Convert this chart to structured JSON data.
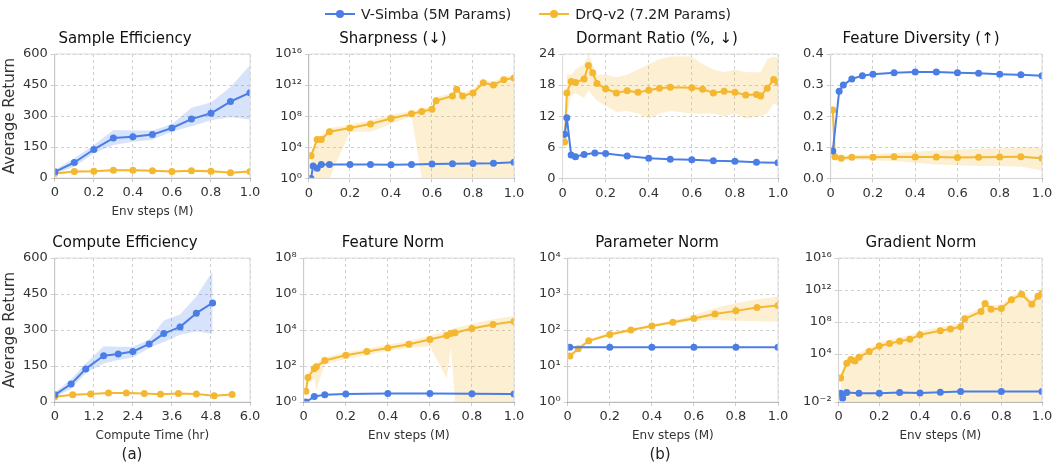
{
  "chart_data": [
    {
      "type": "line",
      "title": "Sample Efficiency",
      "xlabel": "Env steps (M)",
      "ylabel": "Average Return",
      "legend": "top",
      "grid": true,
      "marker": "circle",
      "line_style": "solid",
      "xlim": [
        0,
        1
      ],
      "xticks": [
        {
          "value": 0,
          "label": "0"
        },
        0.2,
        0.4,
        0.6,
        0.8,
        {
          "value": 1,
          "label": "1.0"
        }
      ],
      "ylim": [
        0,
        600
      ],
      "yticks": [
        0,
        150,
        300,
        450,
        600
      ],
      "series": [
        {
          "name": "V-Simba (5M Params)",
          "color": "#4a7ee6",
          "x": [
            0,
            0.1,
            0.2,
            0.3,
            0.4,
            0.5,
            0.6,
            0.7,
            0.8,
            0.9,
            1.0
          ],
          "values": [
            30,
            75,
            138,
            193,
            200,
            210,
            242,
            285,
            313,
            370,
            413
          ],
          "lower": [
            20,
            55,
            120,
            160,
            175,
            185,
            225,
            250,
            280,
            295,
            283
          ],
          "upper": [
            40,
            95,
            160,
            232,
            230,
            230,
            260,
            340,
            365,
            440,
            545
          ]
        },
        {
          "name": "DrQ-v2 (7.2M Params)",
          "color": "#f4b730",
          "x": [
            0,
            0.1,
            0.2,
            0.3,
            0.4,
            0.5,
            0.6,
            0.7,
            0.8,
            0.9,
            1.0
          ],
          "values": [
            22,
            32,
            33,
            38,
            38,
            35,
            32,
            35,
            33,
            26,
            31
          ],
          "lower": [
            17,
            27,
            28,
            33,
            33,
            30,
            27,
            30,
            26,
            21,
            25
          ],
          "upper": [
            27,
            37,
            38,
            43,
            43,
            40,
            37,
            40,
            40,
            31,
            37
          ]
        }
      ]
    },
    {
      "type": "line",
      "title": "Sharpness (↓)",
      "grid": true,
      "marker": "circle",
      "line_style": "solid",
      "log": "y",
      "xlim": [
        0,
        1
      ],
      "xticks": [
        {
          "value": 0,
          "label": "0"
        },
        0.2,
        0.4,
        0.6,
        0.8,
        {
          "value": 1,
          "label": "1.0"
        }
      ],
      "ylim": [
        1,
        1e+16
      ],
      "yticks": [
        {
          "value": 1,
          "label": "10⁰"
        },
        {
          "value": 10000.0,
          "label": "10⁴"
        },
        {
          "value": 100000000.0,
          "label": "10⁸"
        },
        {
          "value": 1000000000000.0,
          "label": "10¹²"
        },
        {
          "value": 1e+16,
          "label": "10¹⁶"
        }
      ],
      "series": [
        {
          "color": "#4a7ee6",
          "x": [
            0.01,
            0.02,
            0.04,
            0.06,
            0.1,
            0.2,
            0.3,
            0.4,
            0.5,
            0.6,
            0.7,
            0.8,
            0.9,
            1.0
          ],
          "values": [
            1,
            40,
            20,
            60,
            60,
            60,
            60,
            55,
            60,
            70,
            75,
            80,
            90,
            120
          ]
        },
        {
          "color": "#f4b730",
          "x": [
            0.01,
            0.04,
            0.06,
            0.1,
            0.2,
            0.3,
            0.4,
            0.5,
            0.55,
            0.6,
            0.62,
            0.7,
            0.72,
            0.75,
            0.8,
            0.85,
            0.9,
            0.95,
            1.0
          ],
          "values": [
            800,
            100000.0,
            100000.0,
            1000000.0,
            3000000.0,
            10000000.0,
            50000000.0,
            200000000.0,
            400000000.0,
            800000000.0,
            10000000000.0,
            40000000000.0,
            300000000000.0,
            40000000000.0,
            100000000000.0,
            2000000000000.0,
            1000000000000.0,
            5000000000000.0,
            8000000000000.0
          ],
          "lower": [
            1,
            1,
            1,
            1,
            1000000.0,
            1000000.0,
            10000000.0,
            100000000.0,
            1,
            1,
            1,
            1,
            1,
            1,
            1,
            1,
            1,
            1,
            1
          ],
          "upper": [
            2000,
            300000.0,
            300000.0,
            3000000.0,
            8000000.0,
            30000000.0,
            150000000.0,
            500000000.0,
            1000000000.0,
            2000000000.0,
            30000000000.0,
            100000000000.0,
            800000000000.0,
            100000000000.0,
            300000000000.0,
            5000000000000.0,
            3000000000000.0,
            12000000000000.0,
            20000000000000.0
          ]
        }
      ]
    },
    {
      "type": "line",
      "title": "Dormant Ratio (%, ↓)",
      "grid": true,
      "marker": "circle",
      "line_style": "solid",
      "xlim": [
        0,
        1
      ],
      "xticks": [
        {
          "value": 0,
          "label": "0"
        },
        0.2,
        0.4,
        0.6,
        0.8,
        {
          "value": 1,
          "label": "1.0"
        }
      ],
      "ylim": [
        0,
        24
      ],
      "yticks": [
        0,
        6,
        12,
        18,
        24
      ],
      "series": [
        {
          "color": "#4a7ee6",
          "x": [
            0.01,
            0.02,
            0.04,
            0.06,
            0.1,
            0.15,
            0.2,
            0.3,
            0.4,
            0.5,
            0.6,
            0.7,
            0.8,
            0.9,
            1.0
          ],
          "values": [
            8.5,
            11.7,
            4.5,
            4.2,
            4.6,
            4.9,
            4.8,
            4.3,
            3.9,
            3.7,
            3.6,
            3.4,
            3.3,
            3.1,
            3.0
          ]
        },
        {
          "color": "#f4b730",
          "x": [
            0.01,
            0.02,
            0.04,
            0.06,
            0.1,
            0.12,
            0.14,
            0.16,
            0.2,
            0.25,
            0.3,
            0.35,
            0.4,
            0.45,
            0.5,
            0.6,
            0.65,
            0.7,
            0.75,
            0.8,
            0.85,
            0.9,
            0.92,
            0.95,
            0.98,
            1.0
          ],
          "values": [
            7.0,
            16.5,
            18.7,
            18.5,
            19.2,
            21.8,
            20.4,
            18.3,
            17.3,
            16.5,
            16.9,
            16.6,
            17.0,
            17.4,
            17.6,
            17.5,
            17.2,
            16.5,
            16.8,
            16.6,
            16.1,
            16.2,
            15.9,
            17.4,
            19.1,
            18.5
          ],
          "lower": [
            6,
            12,
            16,
            16.5,
            15.5,
            17,
            16,
            15,
            14,
            12.8,
            13,
            12.5,
            11.5,
            12.5,
            13,
            12.5,
            12.5,
            12.5,
            12,
            12.5,
            11.5,
            12,
            12,
            12.5,
            14.5,
            14
          ],
          "upper": [
            8,
            20,
            20,
            21,
            22,
            24,
            22,
            20,
            20,
            19.5,
            20,
            21,
            22,
            23,
            23.5,
            23.5,
            22,
            21,
            20.5,
            21,
            20.5,
            20.5,
            20.5,
            23,
            23.5,
            23.2
          ]
        }
      ]
    },
    {
      "type": "line",
      "title": "Feature Diversity (↑)",
      "grid": true,
      "marker": "circle",
      "line_style": "solid",
      "xlim": [
        0,
        1
      ],
      "xticks": [
        {
          "value": 0,
          "label": "0"
        },
        0.2,
        0.4,
        0.6,
        0.8,
        {
          "value": 1,
          "label": "1.0"
        }
      ],
      "ylim": [
        0,
        0.4
      ],
      "yticks": [
        {
          "value": 0,
          "label": "0.0"
        },
        0.1,
        0.2,
        0.3,
        0.4
      ],
      "series": [
        {
          "color": "#4a7ee6",
          "x": [
            0.01,
            0.04,
            0.06,
            0.1,
            0.15,
            0.2,
            0.3,
            0.4,
            0.5,
            0.6,
            0.7,
            0.8,
            0.9,
            1.0
          ],
          "values": [
            0.088,
            0.28,
            0.3,
            0.32,
            0.33,
            0.335,
            0.34,
            0.342,
            0.342,
            0.34,
            0.338,
            0.335,
            0.333,
            0.33
          ]
        },
        {
          "color": "#f4b730",
          "x": [
            0.01,
            0.02,
            0.05,
            0.1,
            0.2,
            0.3,
            0.4,
            0.5,
            0.6,
            0.7,
            0.8,
            0.9,
            1.0
          ],
          "values": [
            0.22,
            0.07,
            0.065,
            0.068,
            0.068,
            0.07,
            0.069,
            0.069,
            0.067,
            0.068,
            0.069,
            0.07,
            0.065
          ],
          "lower": [
            0.19,
            0.06,
            0.058,
            0.06,
            0.058,
            0.055,
            0.05,
            0.045,
            0.042,
            0.04,
            0.04,
            0.038,
            0.025
          ],
          "upper": [
            0.25,
            0.08,
            0.072,
            0.076,
            0.078,
            0.082,
            0.086,
            0.09,
            0.092,
            0.095,
            0.097,
            0.1,
            0.1
          ]
        }
      ]
    },
    {
      "type": "line",
      "title": "Compute Efficiency",
      "xlabel": "Compute Time (hr)",
      "ylabel": "Average Return",
      "grid": true,
      "marker": "circle",
      "line_style": "solid",
      "xlim": [
        0,
        6
      ],
      "xticks": [
        {
          "value": 0,
          "label": "0"
        },
        1.2,
        2.4,
        3.6,
        4.8,
        {
          "value": 6,
          "label": "6.0"
        }
      ],
      "ylim": [
        0,
        600
      ],
      "yticks": [
        0,
        150,
        300,
        450,
        600
      ],
      "annotations": [
        "(a)"
      ],
      "series": [
        {
          "color": "#4a7ee6",
          "x": [
            0,
            0.5,
            0.95,
            1.5,
            1.95,
            2.4,
            2.9,
            3.35,
            3.85,
            4.35,
            4.85
          ],
          "values": [
            30,
            75,
            138,
            193,
            200,
            210,
            242,
            285,
            313,
            370,
            413
          ],
          "lower": [
            20,
            55,
            120,
            160,
            175,
            185,
            225,
            250,
            280,
            295,
            283
          ],
          "upper": [
            40,
            95,
            160,
            232,
            230,
            230,
            260,
            340,
            365,
            440,
            545
          ]
        },
        {
          "color": "#f4b730",
          "x": [
            0,
            0.55,
            1.1,
            1.65,
            2.2,
            2.75,
            3.25,
            3.8,
            4.35,
            4.9,
            5.45
          ],
          "values": [
            22,
            30,
            33,
            38,
            38,
            35,
            32,
            35,
            33,
            26,
            31
          ]
        }
      ]
    },
    {
      "type": "line",
      "title": "Feature Norm",
      "xlabel": "Env steps (M)",
      "grid": true,
      "marker": "circle",
      "line_style": "solid",
      "log": "y",
      "xlim": [
        0,
        1
      ],
      "xticks": [
        {
          "value": 0,
          "label": "0"
        },
        0.2,
        0.4,
        0.6,
        0.8,
        {
          "value": 1,
          "label": "1.0"
        }
      ],
      "ylim": [
        1,
        100000000.0
      ],
      "yticks": [
        {
          "value": 1,
          "label": "10⁰"
        },
        {
          "value": 100,
          "label": "10²"
        },
        {
          "value": 10000.0,
          "label": "10⁴"
        },
        {
          "value": 1000000.0,
          "label": "10⁶"
        },
        {
          "value": 100000000.0,
          "label": "10⁸"
        }
      ],
      "series": [
        {
          "color": "#4a7ee6",
          "x": [
            0.01,
            0.05,
            0.1,
            0.2,
            0.4,
            0.6,
            0.8,
            1.0
          ],
          "values": [
            1,
            2,
            2.5,
            2.8,
            3,
            3,
            2.9,
            2.8
          ]
        },
        {
          "color": "#f4b730",
          "x": [
            0.01,
            0.02,
            0.05,
            0.06,
            0.1,
            0.2,
            0.3,
            0.4,
            0.5,
            0.6,
            0.68,
            0.7,
            0.72,
            0.8,
            0.9,
            1.0
          ],
          "values": [
            4,
            23,
            70,
            90,
            200,
            400,
            630,
            1000,
            1600,
            3000,
            5000,
            6300,
            7000,
            12000,
            20000,
            30000
          ],
          "lower": [
            2,
            10,
            20,
            5,
            120,
            250,
            400,
            700,
            1000,
            1200,
            20,
            1000,
            1,
            1,
            1,
            1
          ],
          "upper": [
            6,
            40,
            120,
            150,
            300,
            600,
            900,
            1500,
            2500,
            5000,
            9000,
            11000,
            13000,
            22000,
            40000,
            60000
          ]
        }
      ]
    },
    {
      "type": "line",
      "title": "Parameter Norm",
      "xlabel": "Env steps (M)",
      "grid": true,
      "marker": "circle",
      "line_style": "solid",
      "log": "y",
      "xlim": [
        0,
        1
      ],
      "xticks": [
        {
          "value": 0,
          "label": "0"
        },
        0.2,
        0.4,
        0.6,
        0.8,
        {
          "value": 1,
          "label": "1.0"
        }
      ],
      "ylim": [
        1,
        10000.0
      ],
      "yticks": [
        {
          "value": 1,
          "label": "10⁰"
        },
        {
          "value": 10,
          "label": "10¹"
        },
        {
          "value": 100,
          "label": "10²"
        },
        {
          "value": 1000,
          "label": "10³"
        },
        {
          "value": 10000.0,
          "label": "10⁴"
        }
      ],
      "annotations": [
        "(b)"
      ],
      "series": [
        {
          "color": "#4a7ee6",
          "x": [
            0.01,
            0.2,
            0.4,
            0.6,
            0.8,
            1.0
          ],
          "values": [
            33,
            33,
            33,
            33,
            33,
            33
          ]
        },
        {
          "color": "#f4b730",
          "x": [
            0.01,
            0.05,
            0.1,
            0.2,
            0.3,
            0.4,
            0.5,
            0.6,
            0.7,
            0.8,
            0.9,
            1.0
          ],
          "values": [
            19,
            30,
            50,
            75,
            100,
            130,
            165,
            210,
            280,
            340,
            420,
            480
          ],
          "lower": [
            17,
            27,
            45,
            68,
            90,
            118,
            150,
            180,
            190,
            180,
            175,
            170
          ],
          "upper": [
            21,
            33,
            55,
            85,
            112,
            145,
            185,
            260,
            400,
            560,
            700,
            850
          ]
        }
      ]
    },
    {
      "type": "line",
      "title": "Gradient Norm",
      "xlabel": "Env steps (M)",
      "grid": true,
      "marker": "circle",
      "line_style": "solid",
      "log": "y",
      "xlim": [
        0,
        1
      ],
      "xticks": [
        {
          "value": 0,
          "label": "0"
        },
        0.2,
        0.4,
        0.6,
        0.8,
        {
          "value": 1,
          "label": "1.0"
        }
      ],
      "ylim": [
        0.01,
        1e+16
      ],
      "yticks": [
        {
          "value": 0.01,
          "label": "10⁻²"
        },
        {
          "value": 10000.0,
          "label": "10⁴"
        },
        {
          "value": 100000000.0,
          "label": "10⁸"
        },
        {
          "value": 1000000000000.0,
          "label": "10¹²"
        },
        {
          "value": 1e+16,
          "label": "10¹⁶"
        }
      ],
      "series": [
        {
          "color": "#4a7ee6",
          "x": [
            0.01,
            0.02,
            0.04,
            0.1,
            0.2,
            0.3,
            0.4,
            0.5,
            0.6,
            0.8,
            1.0
          ],
          "values": [
            0.12,
            0.03,
            0.15,
            0.12,
            0.12,
            0.15,
            0.13,
            0.17,
            0.2,
            0.2,
            0.2
          ]
        },
        {
          "color": "#f4b730",
          "x": [
            0.01,
            0.04,
            0.06,
            0.08,
            0.1,
            0.15,
            0.2,
            0.25,
            0.3,
            0.35,
            0.4,
            0.5,
            0.55,
            0.6,
            0.62,
            0.7,
            0.72,
            0.75,
            0.8,
            0.85,
            0.9,
            0.95,
            0.98,
            1.0
          ],
          "values": [
            10,
            700,
            2000,
            1300,
            4000,
            20000.0,
            100000.0,
            200000.0,
            400000.0,
            700000.0,
            2500000.0,
            8000000.0,
            13000000.0,
            25000000.0,
            250000000.0,
            2000000000.0,
            20000000000.0,
            4000000000.0,
            5000000000.0,
            60000000000.0,
            300000000000.0,
            16000000000.0,
            160000000000.0,
            400000000000.0
          ],
          "lower": [
            1,
            0.01,
            0.01,
            0.01,
            0.01,
            0.01,
            0.01,
            0.01,
            0.01,
            0.01,
            0.01,
            0.01,
            0.01,
            0.01,
            0.01,
            0.01,
            0.01,
            0.01,
            0.01,
            0.01,
            0.01,
            0.01,
            0.01,
            0.01
          ],
          "upper": [
            30,
            2000,
            6000,
            4000,
            12000.0,
            60000.0,
            300000.0,
            600000.0,
            1200000.0,
            2000000.0,
            7000000.0,
            25000000.0,
            40000000.0,
            70000000.0,
            700000000.0,
            6000000000.0,
            60000000000.0,
            12000000000.0,
            15000000000.0,
            180000000000.0,
            900000000000.0,
            50000000000.0,
            500000000000.0,
            1200000000000.0
          ]
        }
      ]
    }
  ]
}
